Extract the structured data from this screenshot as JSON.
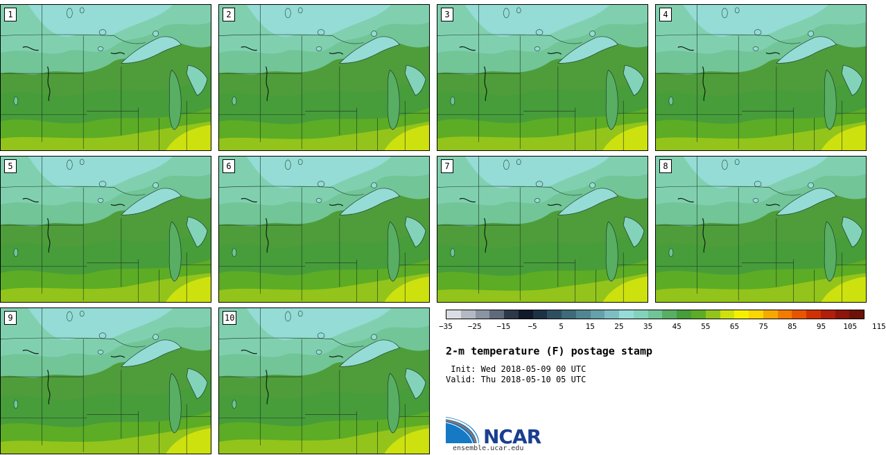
{
  "panels": [
    {
      "label": "1"
    },
    {
      "label": "2"
    },
    {
      "label": "3"
    },
    {
      "label": "4"
    },
    {
      "label": "5"
    },
    {
      "label": "6"
    },
    {
      "label": "7"
    },
    {
      "label": "8"
    },
    {
      "label": "9"
    },
    {
      "label": "10"
    }
  ],
  "colorbar": {
    "colors": [
      "#dadde3",
      "#b3b9c2",
      "#8a94a2",
      "#5f6b7d",
      "#2d3848",
      "#101a2c",
      "#1e3245",
      "#2f4f60",
      "#3f6a79",
      "#528592",
      "#65a1aa",
      "#7ebec3",
      "#95dcd6",
      "#83d3bb",
      "#70c496",
      "#58ae63",
      "#469d3a",
      "#5cac25",
      "#93c41b",
      "#cde10f",
      "#f4f100",
      "#fbd600",
      "#f8a900",
      "#f27c00",
      "#e85500",
      "#cf3200",
      "#b01f0a",
      "#8c160b",
      "#6b1309"
    ],
    "tick_labels": [
      "-35",
      "-25",
      "-15",
      "-5",
      "5",
      "15",
      "25",
      "35",
      "45",
      "55",
      "65",
      "75",
      "85",
      "95",
      "105",
      "115"
    ]
  },
  "title": "2-m temperature (F) postage stamp",
  "init_line": " Init: Wed 2018-05-09 00 UTC",
  "valid_line": "Valid: Thu 2018-05-10 05 UTC",
  "logo": {
    "name": "NCAR",
    "url": "ensemble.ucar.edu",
    "colors": {
      "blue": "#1679c4",
      "dark": "#1a3f8f",
      "arc": "#d86a2a"
    }
  }
}
